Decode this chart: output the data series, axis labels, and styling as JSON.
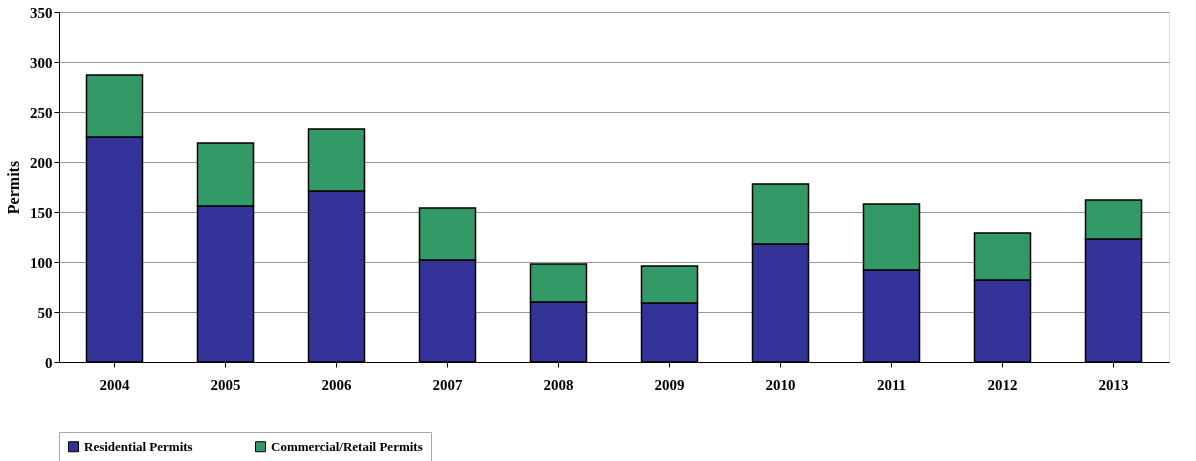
{
  "chart_data": {
    "type": "bar",
    "stacked": true,
    "ylabel": "Permits",
    "categories": [
      "2004",
      "2005",
      "2006",
      "2007",
      "2008",
      "2009",
      "2010",
      "2011",
      "2012",
      "2013"
    ],
    "series": [
      {
        "name": "Residential Permits",
        "color": "#333399",
        "values": [
          225,
          156,
          171,
          102,
          60,
          59,
          118,
          92,
          82,
          123
        ]
      },
      {
        "name": "Commercial/Retail Permits",
        "color": "#339966",
        "values": [
          62,
          63,
          62,
          52,
          38,
          37,
          60,
          66,
          47,
          39
        ]
      }
    ],
    "ylim": [
      0,
      350
    ],
    "yticks": [
      0,
      50,
      100,
      150,
      200,
      250,
      300,
      350
    ],
    "grid": "y",
    "legend": "bottom"
  }
}
